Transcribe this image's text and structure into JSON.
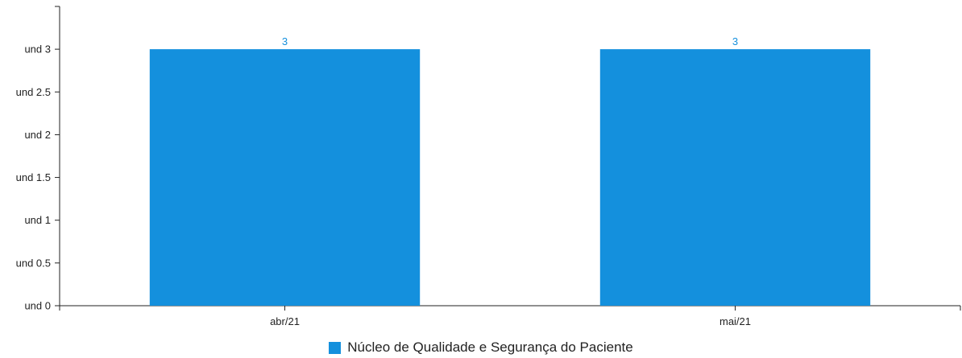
{
  "chart_data": {
    "type": "bar",
    "categories": [
      "abr/21",
      "mai/21"
    ],
    "series": [
      {
        "name": "Núcleo de Qualidade e Segurança do Paciente",
        "values": [
          3,
          3
        ],
        "color": "#1490dd"
      }
    ],
    "y_ticks": [
      0,
      0.5,
      1,
      1.5,
      2,
      2.5,
      3
    ],
    "y_tick_labels": [
      "und 0",
      "und 0.5",
      "und 1",
      "und 1.5",
      "und 2",
      "und 2.5",
      "und 3"
    ],
    "data_labels": [
      "3",
      "3"
    ],
    "ylim": [
      0,
      3.5
    ],
    "grid": false,
    "legend_position": "bottom-center"
  }
}
